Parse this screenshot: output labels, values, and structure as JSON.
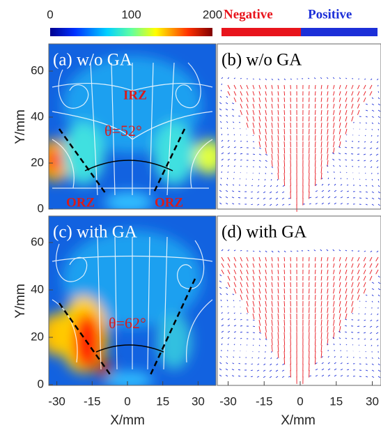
{
  "colorbar": {
    "ticks": [
      0,
      100,
      200
    ]
  },
  "legend": {
    "negative": "Negative",
    "positive": "Positive"
  },
  "panels": [
    {
      "label": "(a) w/o GA",
      "annotations": [
        "IRZ",
        "θ=52°",
        "ORZ",
        "ORZ"
      ]
    },
    {
      "label": "(b) w/o GA"
    },
    {
      "label": "(c) with GA",
      "annotations": [
        "θ=62°"
      ]
    },
    {
      "label": "(d) with GA"
    }
  ],
  "axes": {
    "x_label": "X/mm",
    "y_label": "Y/mm",
    "x_ticks": [
      -30,
      -15,
      0,
      15,
      30
    ],
    "y_ticks": [
      0,
      20,
      40,
      60
    ]
  }
}
